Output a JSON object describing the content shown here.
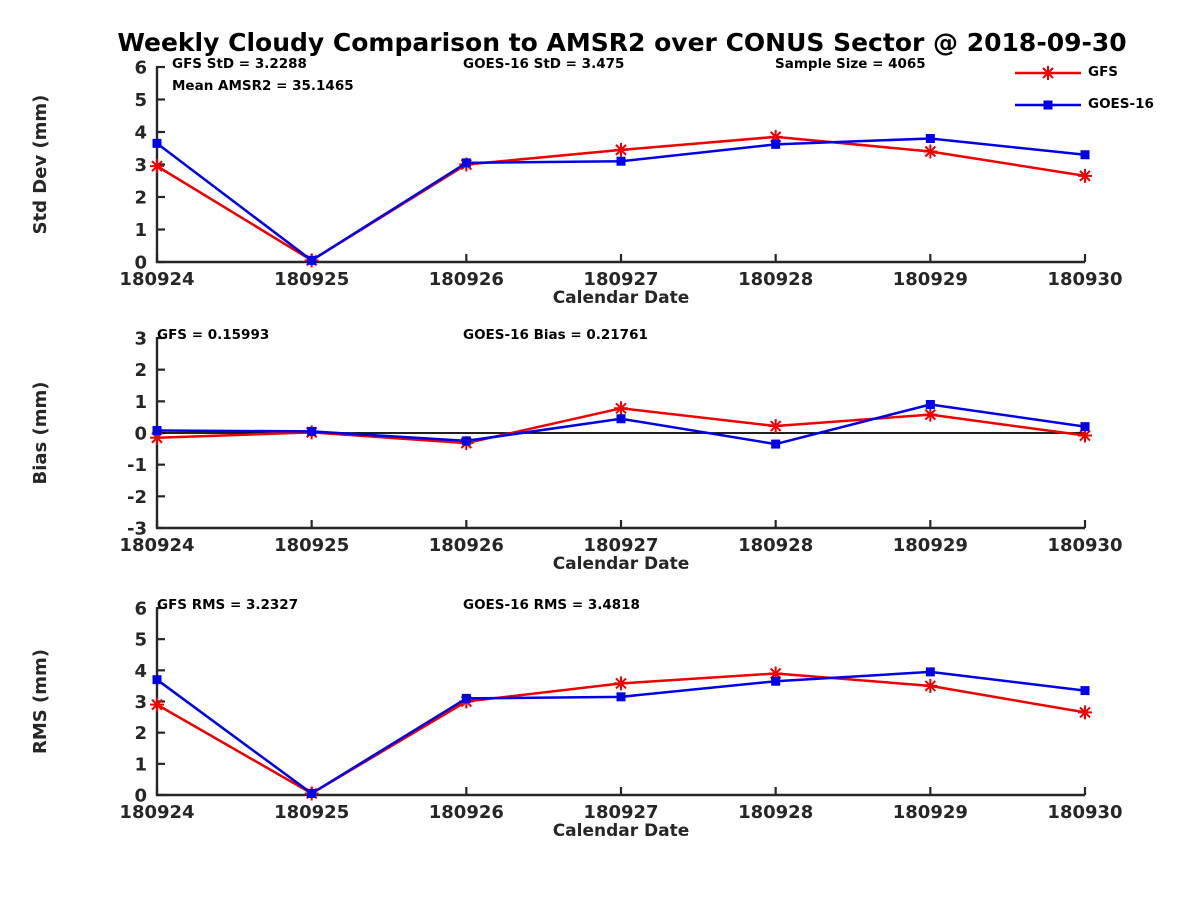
{
  "title": "Weekly Cloudy Comparison to AMSR2 over CONUS Sector @ 2018-09-30",
  "legend": {
    "items": [
      {
        "label": "GFS",
        "color": "#ee0000",
        "marker": "asterisk"
      },
      {
        "label": "GOES-16",
        "color": "#0000e6",
        "marker": "square"
      }
    ]
  },
  "x_axis": {
    "label": "Calendar Date",
    "categories": [
      "180924",
      "180925",
      "180926",
      "180927",
      "180928",
      "180929",
      "180930"
    ]
  },
  "chart_data": [
    {
      "type": "line",
      "name": "std-dev",
      "ylabel": "Std Dev (mm)",
      "ylim": [
        0,
        6
      ],
      "yticks": [
        0,
        1,
        2,
        3,
        4,
        5,
        6
      ],
      "zero_line": false,
      "annotations": [
        {
          "slot": "left1",
          "text": "GFS StD = 3.2288"
        },
        {
          "slot": "left2",
          "text": "Mean AMSR2 = 35.1465"
        },
        {
          "slot": "mid",
          "text": "GOES-16 StD = 3.475"
        },
        {
          "slot": "right",
          "text": "Sample Size = 4065"
        }
      ],
      "series": [
        {
          "name": "GFS",
          "color": "#ee0000",
          "marker": "asterisk",
          "values": [
            2.95,
            0.05,
            3.0,
            3.45,
            3.85,
            3.4,
            2.65
          ]
        },
        {
          "name": "GOES-16",
          "color": "#0000e6",
          "marker": "square",
          "values": [
            3.65,
            0.05,
            3.05,
            3.1,
            3.62,
            3.8,
            3.3
          ]
        }
      ]
    },
    {
      "type": "line",
      "name": "bias",
      "ylabel": "Bias (mm)",
      "ylim": [
        -3,
        3
      ],
      "yticks": [
        -3,
        -2,
        -1,
        0,
        1,
        2,
        3
      ],
      "zero_line": true,
      "annotations": [
        {
          "slot": "left1",
          "text": "GFS = 0.15993"
        },
        {
          "slot": "mid",
          "text": "GOES-16 Bias  = 0.21761"
        }
      ],
      "series": [
        {
          "name": "GFS",
          "color": "#ee0000",
          "marker": "asterisk",
          "values": [
            -0.15,
            0.02,
            -0.32,
            0.78,
            0.22,
            0.58,
            -0.08
          ]
        },
        {
          "name": "GOES-16",
          "color": "#0000e6",
          "marker": "square",
          "values": [
            0.08,
            0.05,
            -0.25,
            0.45,
            -0.35,
            0.9,
            0.2
          ]
        }
      ]
    },
    {
      "type": "line",
      "name": "rms",
      "ylabel": "RMS (mm)",
      "ylim": [
        0,
        6
      ],
      "yticks": [
        0,
        1,
        2,
        3,
        4,
        5,
        6
      ],
      "zero_line": false,
      "annotations": [
        {
          "slot": "left1",
          "text": "GFS RMS = 3.2327"
        },
        {
          "slot": "mid",
          "text": "GOES-16 RMS = 3.4818"
        }
      ],
      "series": [
        {
          "name": "GFS",
          "color": "#ee0000",
          "marker": "asterisk",
          "values": [
            2.9,
            0.05,
            3.0,
            3.58,
            3.9,
            3.5,
            2.65
          ]
        },
        {
          "name": "GOES-16",
          "color": "#0000e6",
          "marker": "square",
          "values": [
            3.7,
            0.05,
            3.1,
            3.15,
            3.65,
            3.95,
            3.35
          ]
        }
      ]
    }
  ]
}
